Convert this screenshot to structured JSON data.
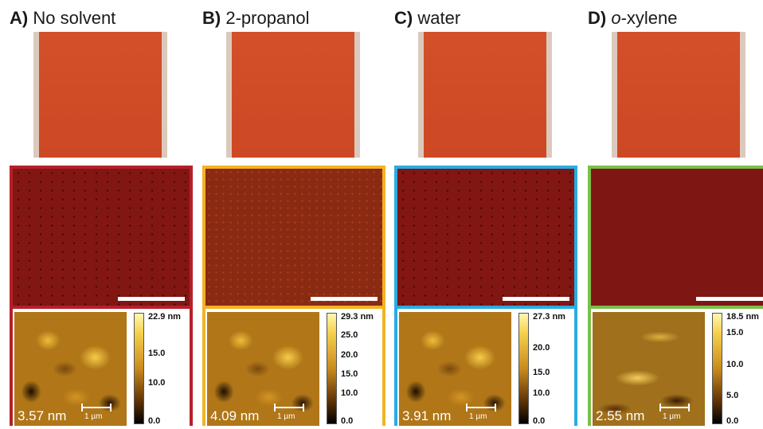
{
  "panels": [
    {
      "letter": "A)",
      "solvent_prefix": "",
      "solvent_italic": "",
      "solvent_rest": "No solvent",
      "roughness": "3.57 nm",
      "scale_um": "1 µm",
      "cbar_ticks": [
        "22.9 nm",
        "15.0",
        "10.0",
        "0.0"
      ],
      "border_color": "#b5202a"
    },
    {
      "letter": "B)",
      "solvent_prefix": "",
      "solvent_italic": "",
      "solvent_rest": "2-propanol",
      "roughness": "4.09 nm",
      "scale_um": "1 µm",
      "cbar_ticks": [
        "29.3 nm",
        "25.0",
        "20.0",
        "15.0",
        "10.0",
        "0.0"
      ],
      "border_color": "#f4b223"
    },
    {
      "letter": "C)",
      "solvent_prefix": "",
      "solvent_italic": "",
      "solvent_rest": "water",
      "roughness": "3.91 nm",
      "scale_um": "1 µm",
      "cbar_ticks": [
        "27.3 nm",
        "20.0",
        "15.0",
        "10.0",
        "0.0"
      ],
      "border_color": "#2aabe2"
    },
    {
      "letter": "D)",
      "solvent_prefix": "",
      "solvent_italic": "o",
      "solvent_rest": "-xylene",
      "roughness": "2.55 nm",
      "scale_um": "1 µm",
      "cbar_ticks": [
        "18.5 nm",
        "15.0",
        "10.0",
        "5.0",
        "0.0"
      ],
      "border_color": "#7bbf4a"
    }
  ]
}
